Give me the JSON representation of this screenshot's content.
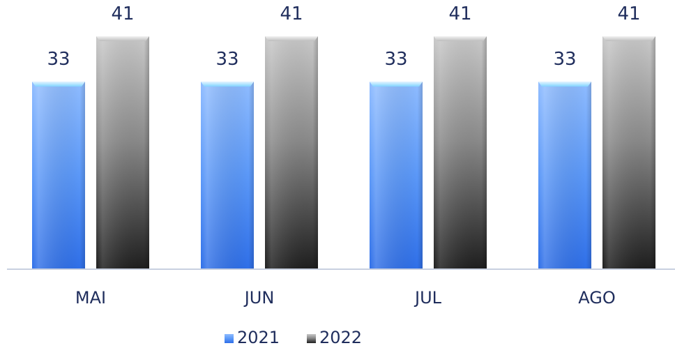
{
  "chart_data": {
    "type": "bar",
    "categories": [
      "MAI",
      "JUN",
      "JUL",
      "AGO"
    ],
    "series": [
      {
        "name": "2021",
        "values": [
          33,
          33,
          33,
          33
        ],
        "color": "#4f8ef7"
      },
      {
        "name": "2022",
        "values": [
          41,
          41,
          41,
          41
        ],
        "color": "#8c8c8c"
      }
    ],
    "ylim": [
      0,
      41
    ],
    "grid": false,
    "legend_position": "bottom",
    "data_labels": true,
    "colors": {
      "text": "#1f2d5c",
      "axis": "#c8d0e0"
    }
  }
}
